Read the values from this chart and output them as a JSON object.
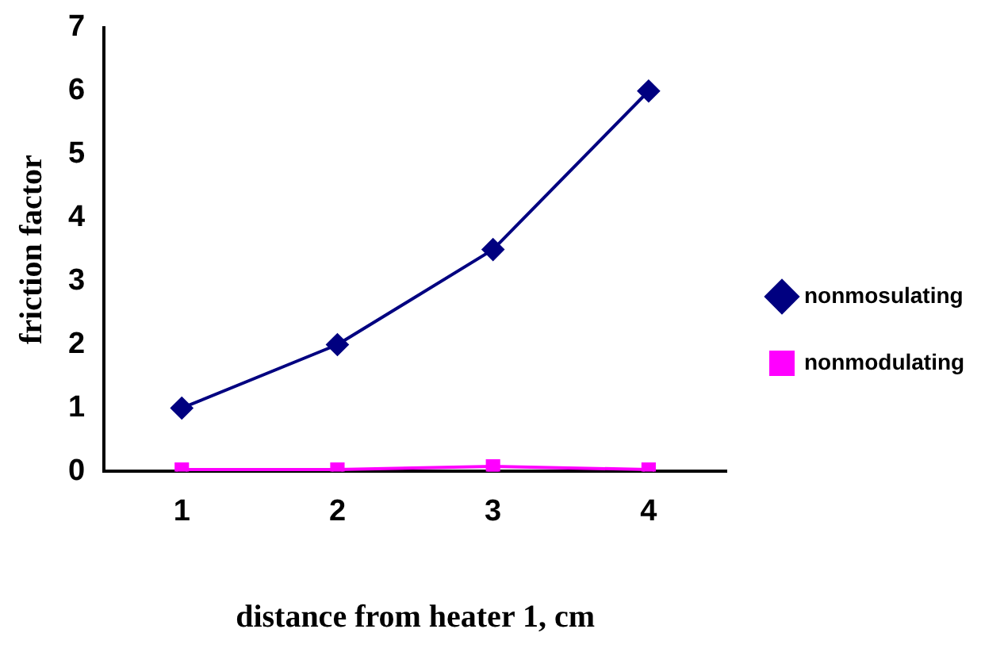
{
  "chart_data": {
    "type": "line",
    "xlabel": "distance from heater 1, cm",
    "ylabel": "friction factor",
    "categories": [
      "1",
      "2",
      "3",
      "4"
    ],
    "series": [
      {
        "name": "nonmosulating",
        "color": "#000080",
        "marker": "diamond",
        "values": [
          1,
          2,
          3.5,
          6
        ]
      },
      {
        "name": "nonmodulating",
        "color": "#ff00ff",
        "marker": "square",
        "values": [
          0.03,
          0.03,
          0.08,
          0.03
        ]
      }
    ],
    "ylim": [
      0,
      7
    ],
    "yticks": [
      0,
      1,
      2,
      3,
      4,
      5,
      6,
      7
    ],
    "grid": false,
    "legend": "right",
    "line_style": "solid"
  }
}
